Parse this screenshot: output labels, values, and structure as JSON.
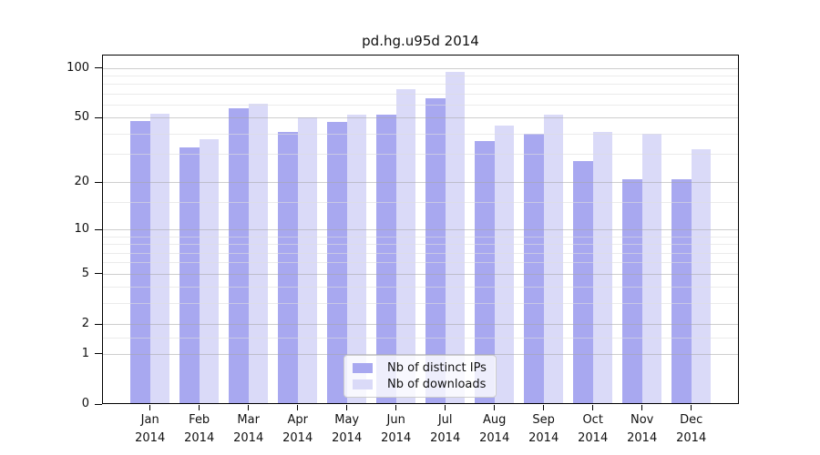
{
  "chart_data": {
    "type": "bar",
    "title": "pd.hg.u95d 2014",
    "year": "2014",
    "categories": [
      "Jan",
      "Feb",
      "Mar",
      "Apr",
      "May",
      "Jun",
      "Jul",
      "Aug",
      "Sep",
      "Oct",
      "Nov",
      "Dec"
    ],
    "series": [
      {
        "name": "Nb of distinct IPs",
        "color": "#a8a8f0",
        "values": [
          48,
          33,
          57,
          41,
          47,
          52,
          66,
          36,
          40,
          27,
          21,
          21
        ]
      },
      {
        "name": "Nb of downloads",
        "color": "#dadaf8",
        "values": [
          53,
          37,
          61,
          50,
          52,
          75,
          95,
          45,
          52,
          41,
          40,
          32
        ]
      }
    ],
    "y_ticks": [
      0,
      1,
      2,
      5,
      10,
      20,
      50,
      100
    ],
    "ylim": [
      0,
      120
    ],
    "yscale": "log1p",
    "xlabel": "",
    "ylabel": "",
    "grid": "horizontal",
    "legend_position": "bottom-center"
  }
}
